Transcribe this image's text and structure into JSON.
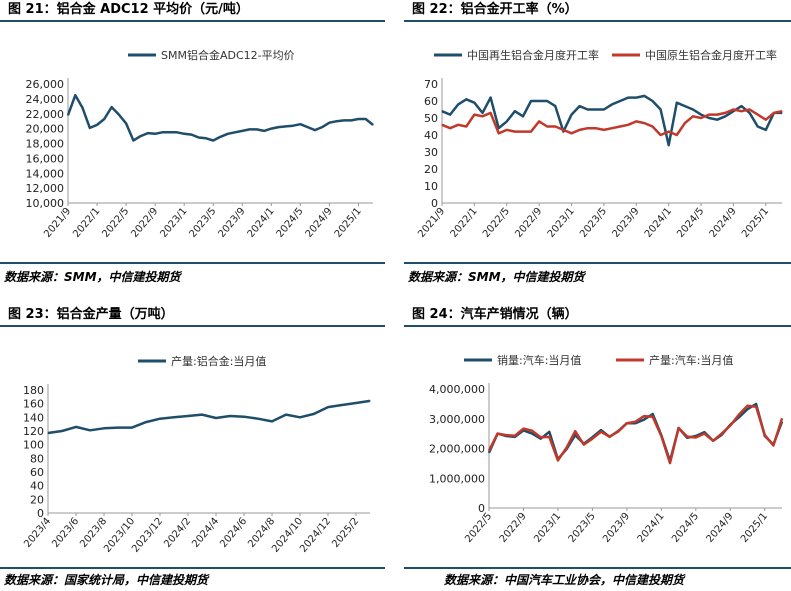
{
  "panels": [
    {
      "title": "图 21：铝合金 ADC12 平均价（元/吨）",
      "source": "数据来源：SMM，中信建投期货",
      "chart_data": {
        "type": "line",
        "title": "",
        "legend_position": "top",
        "ylim": [
          10000,
          26000
        ],
        "y_ticks": [
          10000,
          12000,
          14000,
          16000,
          18000,
          20000,
          22000,
          24000,
          26000
        ],
        "y_tick_labels": [
          "10,000",
          "12,000",
          "14,000",
          "16,000",
          "18,000",
          "20,000",
          "22,000",
          "24,000",
          "26,000"
        ],
        "x_tick_labels": [
          "2021/9",
          "2022/1",
          "2022/5",
          "2022/9",
          "2023/1",
          "2023/5",
          "2023/9",
          "2024/1",
          "2024/5",
          "2024/9",
          "2025/1"
        ],
        "x": [
          "2021/9",
          "2021/10",
          "2021/11",
          "2021/12",
          "2022/1",
          "2022/2",
          "2022/3",
          "2022/4",
          "2022/5",
          "2022/6",
          "2022/7",
          "2022/8",
          "2022/9",
          "2022/10",
          "2022/11",
          "2022/12",
          "2023/1",
          "2023/2",
          "2023/3",
          "2023/4",
          "2023/5",
          "2023/6",
          "2023/7",
          "2023/8",
          "2023/9",
          "2023/10",
          "2023/11",
          "2023/12",
          "2024/1",
          "2024/2",
          "2024/3",
          "2024/4",
          "2024/5",
          "2024/6",
          "2024/7",
          "2024/8",
          "2024/9",
          "2024/10",
          "2024/11",
          "2024/12",
          "2025/1",
          "2025/2",
          "2025/3"
        ],
        "series": [
          {
            "name": "SMM铝合金ADC12-平均价",
            "color": "#1f4e6b",
            "values": [
              21800,
              24500,
              22800,
              20100,
              20500,
              21300,
              22900,
              21900,
              20700,
              18400,
              19000,
              19400,
              19300,
              19500,
              19500,
              19500,
              19300,
              19200,
              18800,
              18700,
              18400,
              18900,
              19300,
              19500,
              19700,
              19900,
              19900,
              19700,
              20000,
              20200,
              20300,
              20400,
              20600,
              20200,
              19800,
              20200,
              20800,
              21000,
              21100,
              21100,
              21300,
              21300,
              20500
            ]
          }
        ]
      }
    },
    {
      "title": "图 22：铝合金开工率（%）",
      "source": "数据来源：SMM，中信建投期货",
      "chart_data": {
        "type": "line",
        "title": "",
        "legend_position": "top",
        "ylim": [
          0,
          70
        ],
        "y_ticks": [
          0,
          10,
          20,
          30,
          40,
          50,
          60,
          70
        ],
        "y_tick_labels": [
          "0",
          "10",
          "20",
          "30",
          "40",
          "50",
          "60",
          "70"
        ],
        "x_tick_labels": [
          "2021/9",
          "2022/1",
          "2022/5",
          "2022/9",
          "2023/1",
          "2023/5",
          "2023/9",
          "2024/1",
          "2024/5",
          "2024/9",
          "2025/1"
        ],
        "x": [
          "2021/9",
          "2021/10",
          "2021/11",
          "2021/12",
          "2022/1",
          "2022/2",
          "2022/3",
          "2022/4",
          "2022/5",
          "2022/6",
          "2022/7",
          "2022/8",
          "2022/9",
          "2022/10",
          "2022/11",
          "2022/12",
          "2023/1",
          "2023/2",
          "2023/3",
          "2023/4",
          "2023/5",
          "2023/6",
          "2023/7",
          "2023/8",
          "2023/9",
          "2023/10",
          "2023/11",
          "2023/12",
          "2024/1",
          "2024/2",
          "2024/3",
          "2024/4",
          "2024/5",
          "2024/6",
          "2024/7",
          "2024/8",
          "2024/9",
          "2024/10",
          "2024/11",
          "2024/12",
          "2025/1",
          "2025/2",
          "2025/3"
        ],
        "series": [
          {
            "name": "中国再生铝合金月度开工率",
            "color": "#1f4e6b",
            "values": [
              54,
              52,
              58,
              61,
              59,
              53,
              62,
              44,
              48,
              54,
              51,
              60,
              60,
              60,
              57,
              42,
              52,
              57,
              55,
              55,
              55,
              58,
              60,
              62,
              62,
              63,
              60,
              55,
              34,
              59,
              57,
              55,
              52,
              50,
              49,
              51,
              54,
              57,
              53,
              45,
              43,
              53,
              53
            ]
          },
          {
            "name": "中国原生铝合金月度开工率",
            "color": "#c0392b",
            "values": [
              46,
              44,
              46,
              45,
              52,
              51,
              53,
              41,
              43,
              42,
              42,
              42,
              48,
              45,
              45,
              43,
              41,
              43,
              44,
              44,
              43,
              44,
              45,
              46,
              48,
              47,
              45,
              40,
              42,
              40,
              47,
              51,
              50,
              52,
              52,
              53,
              55,
              54,
              55,
              52,
              49,
              53,
              54
            ]
          }
        ]
      }
    },
    {
      "title": "图 23：铝合金产量（万吨）",
      "source": "数据来源：国家统计局，中信建投期货",
      "chart_data": {
        "type": "line",
        "title": "",
        "legend_position": "top",
        "ylim": [
          0,
          180
        ],
        "y_ticks": [
          0,
          20,
          40,
          60,
          80,
          100,
          120,
          140,
          160,
          180
        ],
        "y_tick_labels": [
          "0",
          "20",
          "40",
          "60",
          "80",
          "100",
          "120",
          "140",
          "160",
          "180"
        ],
        "x_tick_labels": [
          "2023/4",
          "2023/6",
          "2023/8",
          "2023/10",
          "2023/12",
          "2024/2",
          "2024/4",
          "2024/6",
          "2024/8",
          "2024/10",
          "2024/12",
          "2025/2"
        ],
        "x": [
          "2023/4",
          "2023/5",
          "2023/6",
          "2023/7",
          "2023/8",
          "2023/9",
          "2023/10",
          "2023/11",
          "2023/12",
          "2024/1",
          "2024/2",
          "2024/3",
          "2024/4",
          "2024/5",
          "2024/6",
          "2024/7",
          "2024/8",
          "2024/9",
          "2024/10",
          "2024/11",
          "2024/12",
          "2025/1",
          "2025/2",
          "2025/3"
        ],
        "series": [
          {
            "name": "产量:铝合金:当月值",
            "color": "#1f4e6b",
            "values": [
              117,
              120,
              126,
              121,
              124,
              125,
              125,
              133,
              138,
              140,
              142,
              144,
              139,
              142,
              141,
              138,
              134,
              144,
              140,
              145,
              155,
              158,
              161,
              164
            ]
          }
        ]
      }
    },
    {
      "title": "图 24：汽车产销情况（辆）",
      "source": "数据来源：中国汽车工业协会，中信建投期货",
      "chart_data": {
        "type": "line",
        "title": "",
        "legend_position": "top",
        "ylim": [
          0,
          4000000
        ],
        "y_ticks": [
          0,
          1000000,
          2000000,
          3000000,
          4000000
        ],
        "y_tick_labels": [
          "0",
          "1,000,000",
          "2,000,000",
          "3,000,000",
          "4,000,000"
        ],
        "x_tick_labels": [
          "2022/5",
          "2022/9",
          "2023/1",
          "2023/5",
          "2023/9",
          "2024/1",
          "2024/5",
          "2024/9",
          "2025/1"
        ],
        "x": [
          "2022/5",
          "2022/6",
          "2022/7",
          "2022/8",
          "2022/9",
          "2022/10",
          "2022/11",
          "2022/12",
          "2023/1",
          "2023/2",
          "2023/3",
          "2023/4",
          "2023/5",
          "2023/6",
          "2023/7",
          "2023/8",
          "2023/9",
          "2023/10",
          "2023/11",
          "2023/12",
          "2024/1",
          "2024/2",
          "2024/3",
          "2024/4",
          "2024/5",
          "2024/6",
          "2024/7",
          "2024/8",
          "2024/9",
          "2024/10",
          "2024/11",
          "2024/12",
          "2025/1",
          "2025/2",
          "2025/3"
        ],
        "series": [
          {
            "name": "销量:汽车:当月值",
            "color": "#1f4e6b",
            "values": [
              1860000,
              2500000,
              2420000,
              2390000,
              2610000,
              2500000,
              2330000,
              2560000,
              1640000,
              1980000,
              2450000,
              2160000,
              2380000,
              2620000,
              2390000,
              2590000,
              2850000,
              2850000,
              2970000,
              3160000,
              2440000,
              1580000,
              2690000,
              2360000,
              2420000,
              2550000,
              2260000,
              2460000,
              2800000,
              3050000,
              3320000,
              3500000,
              2420000,
              2130000,
              2900000
            ]
          },
          {
            "name": "产量:汽车:当月值",
            "color": "#c0392b",
            "values": [
              1930000,
              2500000,
              2450000,
              2430000,
              2670000,
              2600000,
              2380000,
              2390000,
              1600000,
              2030000,
              2580000,
              2130000,
              2330000,
              2560000,
              2400000,
              2570000,
              2850000,
              2900000,
              3090000,
              3070000,
              2410000,
              1510000,
              2690000,
              2400000,
              2370000,
              2500000,
              2260000,
              2500000,
              2770000,
              3140000,
              3440000,
              3400000,
              2450000,
              2100000,
              3010000
            ]
          }
        ]
      }
    }
  ]
}
